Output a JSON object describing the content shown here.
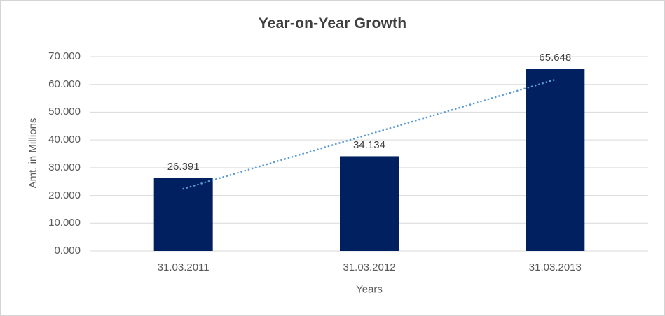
{
  "chart_data": {
    "type": "bar",
    "title": "Year-on-Year Growth",
    "xlabel": "Years",
    "ylabel": "Amt. in Millions",
    "categories": [
      "31.03.2011",
      "31.03.2012",
      "31.03.2013"
    ],
    "values": [
      26.391,
      34.134,
      65.648
    ],
    "value_labels": [
      "26.391",
      "34.134",
      "65.648"
    ],
    "yticks": [
      "0.000",
      "10.000",
      "20.000",
      "30.000",
      "40.000",
      "50.000",
      "60.000",
      "70.000"
    ],
    "ylim": [
      0,
      70
    ],
    "grid": true,
    "legend": false,
    "trendline": {
      "style": "dotted",
      "start_value": 22.4,
      "end_value": 61.7
    },
    "colors": {
      "bar": "#002060",
      "trendline": "#5b9bd5",
      "gridline": "#d9d9d9",
      "axis_text": "#595959",
      "data_label_text": "#404040",
      "title_text": "#3f3f3f",
      "border": "#d4d4d4",
      "background": "#ffffff"
    }
  }
}
